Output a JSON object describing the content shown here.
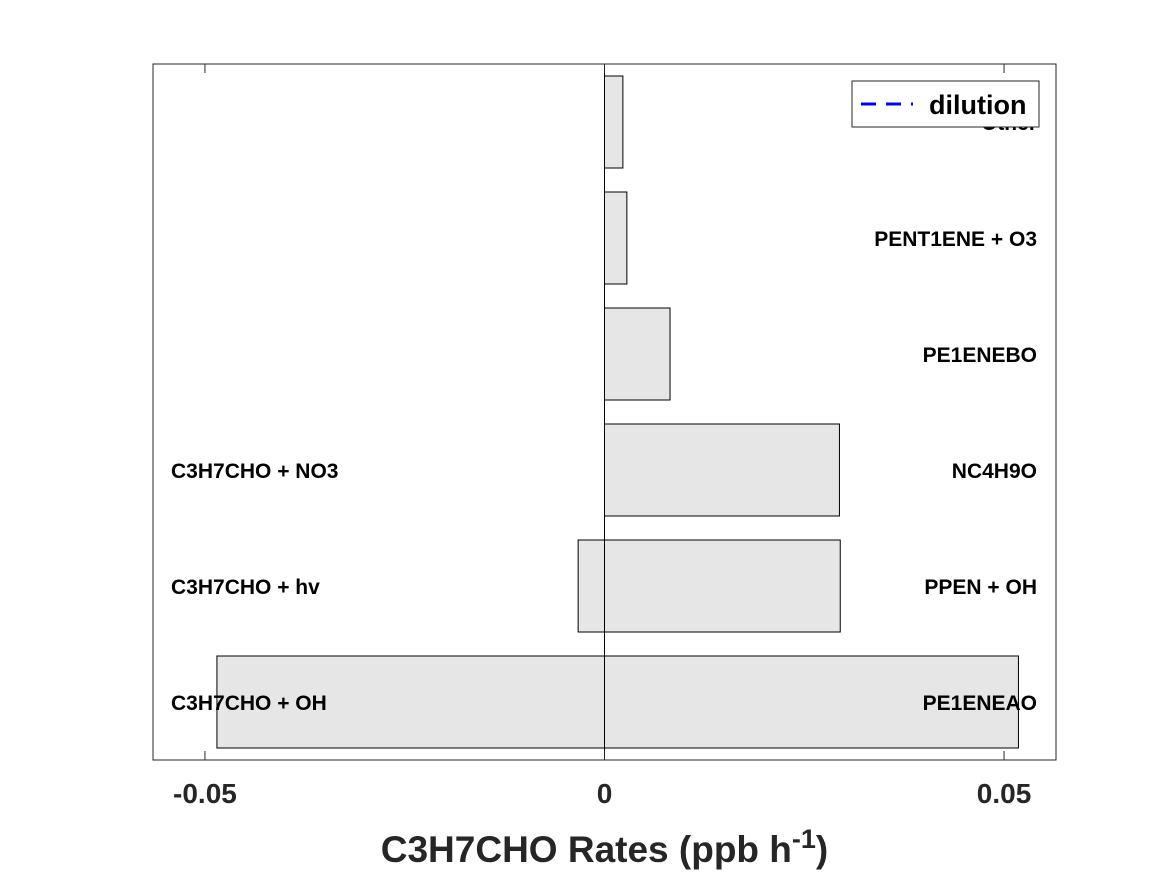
{
  "chart_data": {
    "type": "bar",
    "orientation": "horizontal",
    "xlabel": {
      "main": "C3H7CHO Rates (ppb h",
      "sup": "-1",
      "close": ")"
    },
    "xlim": [
      -0.0565,
      0.0565
    ],
    "xticks": [
      -0.05,
      0,
      0.05
    ],
    "xtick_labels": [
      "-0.05",
      "0",
      "0.05"
    ],
    "grid": false,
    "legend": {
      "placement": "top-right",
      "entries": [
        {
          "name": "dilution",
          "style": "dashed",
          "color": "#0000ff"
        }
      ]
    },
    "bar_color": "#e6e6e6",
    "bar_edge_color": "#000000",
    "production": [
      {
        "label": "PE1ENEAO",
        "value": 0.0518
      },
      {
        "label": "PPEN + OH",
        "value": 0.0295
      },
      {
        "label": "NC4H9O",
        "value": 0.0294
      },
      {
        "label": "PE1ENEBO",
        "value": 0.0082
      },
      {
        "label": "PENT1ENE + O3",
        "value": 0.0028
      },
      {
        "label": "Other",
        "value": 0.0023
      }
    ],
    "loss": [
      {
        "label": "C3H7CHO + OH",
        "value": -0.0485
      },
      {
        "label": "C3H7CHO + hv",
        "value": -0.0033
      },
      {
        "label": "C3H7CHO + NO3",
        "value": 0.0
      }
    ]
  }
}
